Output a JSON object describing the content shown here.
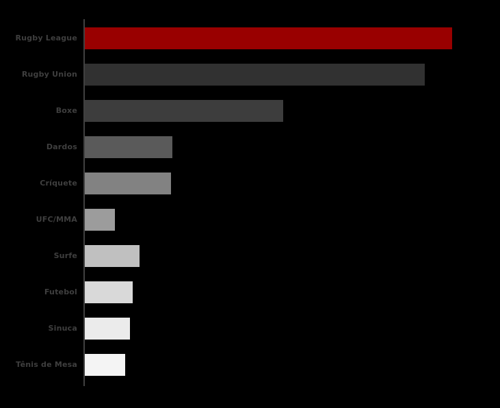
{
  "window": {
    "background_color": "#000000"
  },
  "chart_data": {
    "type": "bar",
    "orientation": "horizontal",
    "title": "",
    "xlabel": "",
    "ylabel": "",
    "categories": [
      "Rugby League",
      "Rugby Union",
      "Boxe",
      "Dardos",
      "Críquete",
      "UFC/MMA",
      "Surfe",
      "Futebol",
      "Sinuca",
      "Tênis de Mesa"
    ],
    "values": [
      100,
      92.5,
      53.9,
      23.9,
      23.5,
      8.2,
      14.9,
      13.1,
      12.3,
      11.0
    ],
    "value_scale": "relative units, longest bar = 100 (no tick labels visible on axis)",
    "xlim": [
      0,
      113
    ],
    "grid": false,
    "legend": false,
    "bar_colors": [
      "#990000",
      "#313131",
      "#3d3d3d",
      "#5a5a5a",
      "#828282",
      "#9c9c9c",
      "#c0c0c0",
      "#d9d9d9",
      "#ebebeb",
      "#f4f4f4"
    ],
    "label_color": "#3f3f3f",
    "axis_line_color": "#414141",
    "background_color": "#000000"
  }
}
